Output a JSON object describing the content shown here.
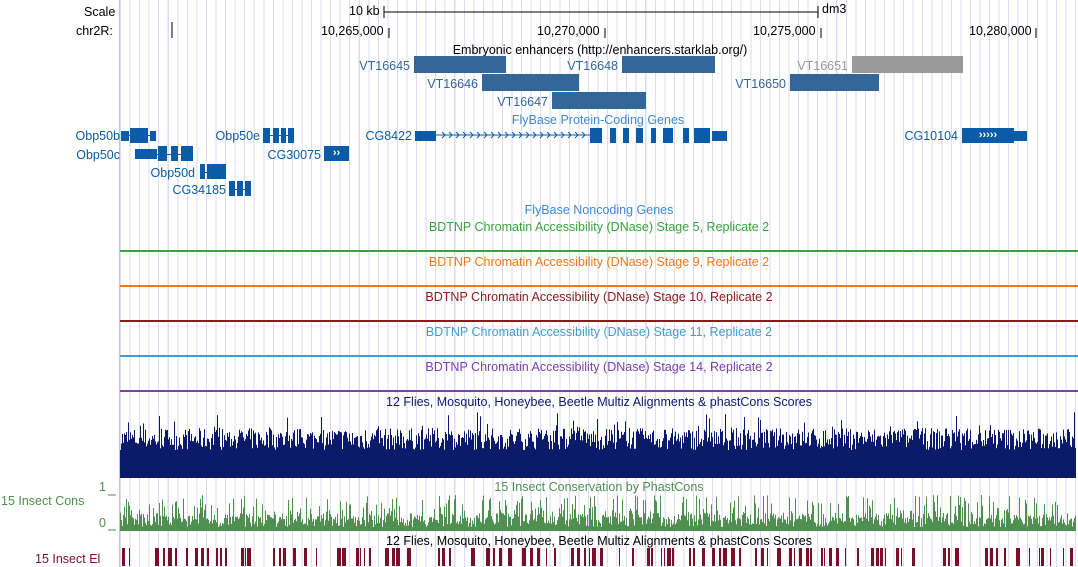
{
  "ruler": {
    "scale_label": "Scale",
    "chrom_label": "chr2R:",
    "scale_bar_text": "10 kb",
    "assembly": "dm3",
    "positions": [
      "10,265,000",
      "10,270,000",
      "10,275,000",
      "10,280,000"
    ]
  },
  "tracks": {
    "enhancers": {
      "title": "Embryonic enhancers (http://enhancers.starklab.org/)",
      "color": "#336699",
      "dim_color": "#999999",
      "items": [
        "VT16645",
        "VT16646",
        "VT16647",
        "VT16648",
        "VT16650",
        "VT16651"
      ]
    },
    "protein_coding": {
      "title": "FlyBase Protein-Coding Genes",
      "color": "#0b5ca8",
      "genes": [
        "Obp50b",
        "Obp50c",
        "Obp50d",
        "CG34185",
        "Obp50e",
        "CG30075",
        "CG8422",
        "CG10104"
      ],
      "strand_glyphs": {
        "CG30075": "››",
        "CG10104": "›››››"
      }
    },
    "noncoding": {
      "title": "FlyBase Noncoding Genes",
      "color": "#3b8bd6"
    },
    "dnase": [
      {
        "title": "BDTNP Chromatin Accessibility (DNase) Stage 5, Replicate 2",
        "color": "#3aa33a"
      },
      {
        "title": "BDTNP Chromatin Accessibility (DNase) Stage 9, Replicate 2",
        "color": "#f07818"
      },
      {
        "title": "BDTNP Chromatin Accessibility (DNase) Stage 10, Replicate 2",
        "color": "#8b1a1a"
      },
      {
        "title": "BDTNP Chromatin Accessibility (DNase) Stage 11, Replicate 2",
        "color": "#3aa0d0"
      },
      {
        "title": "BDTNP Chromatin Accessibility (DNase) Stage 14, Replicate 2",
        "color": "#7a3fb0"
      }
    ],
    "multiz": {
      "title": "12 Flies, Mosquito, Honeybee, Beetle Multiz Alignments & phastCons Scores",
      "color": "#0b1a6b"
    },
    "phastcons": {
      "title": "15 Insect Conservation by PhastCons",
      "side_label": "15 Insect Cons",
      "axis_max": "1",
      "axis_min": "0",
      "color": "#4f8f4f"
    },
    "elements": {
      "title": "12 Flies, Mosquito, Honeybee, Beetle Multiz Alignments & phastCons Scores",
      "side_label": "15 Insect El",
      "color": "#7a0f2a"
    }
  }
}
